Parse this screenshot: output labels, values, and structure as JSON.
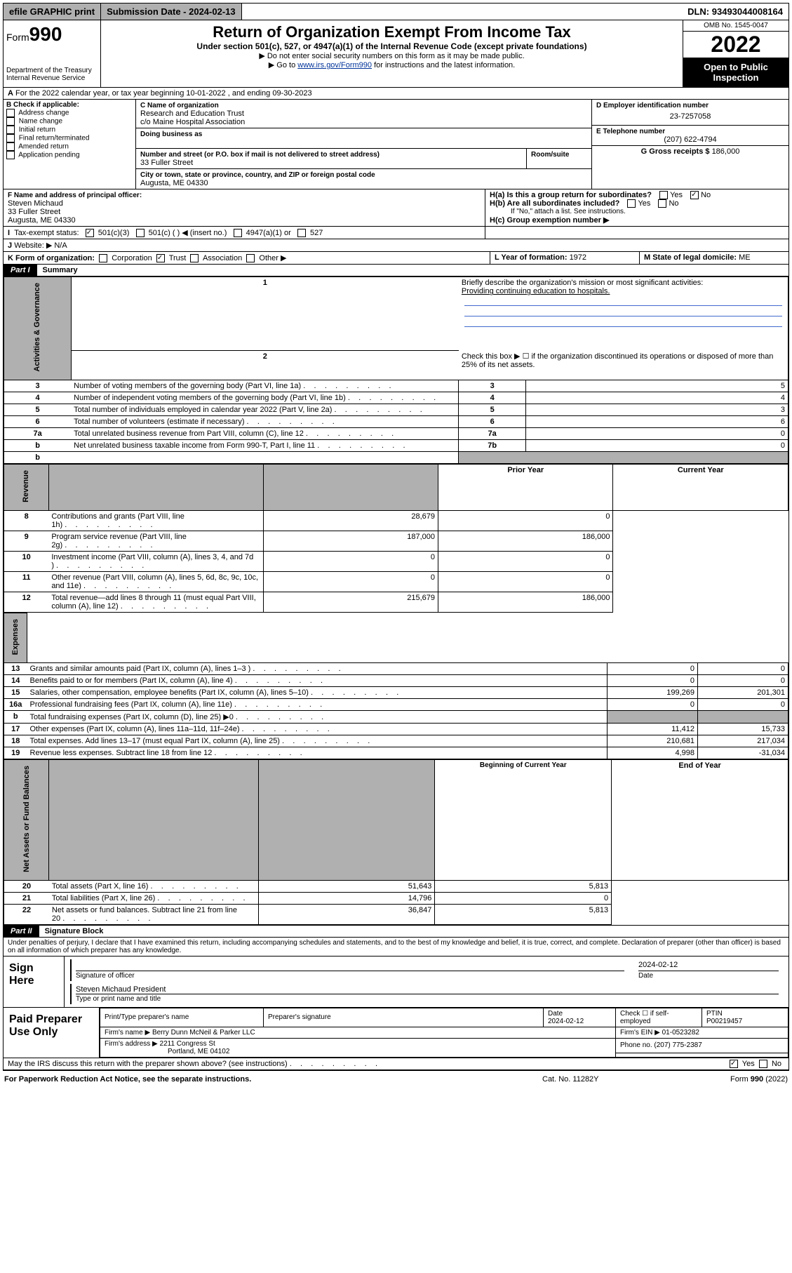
{
  "topbar": {
    "efile": "efile GRAPHIC print",
    "subdate_label": "Submission Date - ",
    "subdate": "2024-02-13",
    "dln_label": "DLN: ",
    "dln": "93493044008164"
  },
  "header": {
    "form_prefix": "Form",
    "form_no": "990",
    "dept": "Department of the Treasury",
    "irs": "Internal Revenue Service",
    "title": "Return of Organization Exempt From Income Tax",
    "subtitle": "Under section 501(c), 527, or 4947(a)(1) of the Internal Revenue Code (except private foundations)",
    "note1": "▶ Do not enter social security numbers on this form as it may be made public.",
    "note2_pre": "▶ Go to ",
    "note2_link": "www.irs.gov/Form990",
    "note2_post": " for instructions and the latest information.",
    "omb": "OMB No. 1545-0047",
    "year": "2022",
    "open": "Open to Public Inspection"
  },
  "lineA": {
    "text": "For the 2022 calendar year, or tax year beginning 10-01-2022   , and ending 09-30-2023",
    "prefix": "A"
  },
  "boxB": {
    "label": "B Check if applicable:",
    "opts": [
      "Address change",
      "Name change",
      "Initial return",
      "Final return/terminated",
      "Amended return",
      "Application pending"
    ]
  },
  "boxC": {
    "clabel": "C Name of organization",
    "name": "Research and Education Trust",
    "care": "c/o Maine Hospital Association",
    "dba_label": "Doing business as",
    "dba": "",
    "addr_label": "Number and street (or P.O. box if mail is not delivered to street address)",
    "room": "Room/suite",
    "addr": "33 Fuller Street",
    "city_label": "City or town, state or province, country, and ZIP or foreign postal code",
    "city": "Augusta, ME  04330"
  },
  "boxD": {
    "label": "D Employer identification number",
    "ein": "23-7257058"
  },
  "boxE": {
    "label": "E Telephone number",
    "phone": "(207) 622-4794"
  },
  "boxG": {
    "label": "G Gross receipts $ ",
    "val": "186,000"
  },
  "boxF": {
    "label": "F Name and address of principal officer:",
    "name": "Steven Michaud",
    "addr1": "33 Fuller Street",
    "addr2": "Augusta, ME  04330"
  },
  "boxH": {
    "a": "H(a)  Is this a group return for subordinates?",
    "b": "H(b)  Are all subordinates included?",
    "ifno": "If \"No,\" attach a list. See instructions.",
    "c": "H(c)  Group exemption number ▶",
    "yes": "Yes",
    "no": "No"
  },
  "boxI": {
    "label": "I",
    "text": "Tax-exempt status:",
    "o1": "501(c)(3)",
    "o2": "501(c) (  ) ◀ (insert no.)",
    "o3": "4947(a)(1) or",
    "o4": "527"
  },
  "boxJ": {
    "label": "J",
    "text": "Website: ▶",
    "val": "N/A"
  },
  "boxK": {
    "label": "K Form of organization:",
    "o1": "Corporation",
    "o2": "Trust",
    "o3": "Association",
    "o4": "Other ▶"
  },
  "boxL": {
    "label": "L Year of formation: ",
    "val": "1972"
  },
  "boxM": {
    "label": "M State of legal domicile: ",
    "val": "ME"
  },
  "part1": {
    "label": "Part I",
    "title": "Summary"
  },
  "summary": {
    "q1": "Briefly describe the organization's mission or most significant activities:",
    "mission": "Providing continuing education to hospitals.",
    "q2": "Check this box ▶ ☐  if the organization discontinued its operations or disposed of more than 25% of its net assets.",
    "rows_gov": [
      {
        "n": "3",
        "t": "Number of voting members of the governing body (Part VI, line 1a)",
        "v": "5"
      },
      {
        "n": "4",
        "t": "Number of independent voting members of the governing body (Part VI, line 1b)",
        "v": "4"
      },
      {
        "n": "5",
        "t": "Total number of individuals employed in calendar year 2022 (Part V, line 2a)",
        "v": "3"
      },
      {
        "n": "6",
        "t": "Total number of volunteers (estimate if necessary)",
        "v": "6"
      },
      {
        "n": "7a",
        "t": "Total unrelated business revenue from Part VIII, column (C), line 12",
        "v": "0"
      },
      {
        "n": "b",
        "t": "Net unrelated business taxable income from Form 990-T, Part I, line 11",
        "kn": "7b",
        "v": "0"
      }
    ],
    "hdr_prior": "Prior Year",
    "hdr_curr": "Current Year",
    "rows_rev": [
      {
        "n": "8",
        "t": "Contributions and grants (Part VIII, line 1h)",
        "p": "28,679",
        "c": "0"
      },
      {
        "n": "9",
        "t": "Program service revenue (Part VIII, line 2g)",
        "p": "187,000",
        "c": "186,000"
      },
      {
        "n": "10",
        "t": "Investment income (Part VIII, column (A), lines 3, 4, and 7d )",
        "p": "0",
        "c": "0"
      },
      {
        "n": "11",
        "t": "Other revenue (Part VIII, column (A), lines 5, 6d, 8c, 9c, 10c, and 11e)",
        "p": "0",
        "c": "0"
      },
      {
        "n": "12",
        "t": "Total revenue—add lines 8 through 11 (must equal Part VIII, column (A), line 12)",
        "p": "215,679",
        "c": "186,000"
      }
    ],
    "rows_exp": [
      {
        "n": "13",
        "t": "Grants and similar amounts paid (Part IX, column (A), lines 1–3 )",
        "p": "0",
        "c": "0"
      },
      {
        "n": "14",
        "t": "Benefits paid to or for members (Part IX, column (A), line 4)",
        "p": "0",
        "c": "0"
      },
      {
        "n": "15",
        "t": "Salaries, other compensation, employee benefits (Part IX, column (A), lines 5–10)",
        "p": "199,269",
        "c": "201,301"
      },
      {
        "n": "16a",
        "t": "Professional fundraising fees (Part IX, column (A), line 11e)",
        "p": "0",
        "c": "0"
      },
      {
        "n": "b",
        "t": "Total fundraising expenses (Part IX, column (D), line 25) ▶0",
        "p": "",
        "c": "",
        "gray": true
      },
      {
        "n": "17",
        "t": "Other expenses (Part IX, column (A), lines 11a–11d, 11f–24e)",
        "p": "11,412",
        "c": "15,733"
      },
      {
        "n": "18",
        "t": "Total expenses. Add lines 13–17 (must equal Part IX, column (A), line 25)",
        "p": "210,681",
        "c": "217,034"
      },
      {
        "n": "19",
        "t": "Revenue less expenses. Subtract line 18 from line 12",
        "p": "4,998",
        "c": "-31,034"
      }
    ],
    "hdr_boy": "Beginning of Current Year",
    "hdr_eoy": "End of Year",
    "rows_net": [
      {
        "n": "20",
        "t": "Total assets (Part X, line 16)",
        "p": "51,643",
        "c": "5,813"
      },
      {
        "n": "21",
        "t": "Total liabilities (Part X, line 26)",
        "p": "14,796",
        "c": "0"
      },
      {
        "n": "22",
        "t": "Net assets or fund balances. Subtract line 21 from line 20",
        "p": "36,847",
        "c": "5,813"
      }
    ],
    "side_gov": "Activities & Governance",
    "side_rev": "Revenue",
    "side_exp": "Expenses",
    "side_net": "Net Assets or Fund Balances"
  },
  "part2": {
    "label": "Part II",
    "title": "Signature Block"
  },
  "penalty": "Under penalties of perjury, I declare that I have examined this return, including accompanying schedules and statements, and to the best of my knowledge and belief, it is true, correct, and complete. Declaration of preparer (other than officer) is based on all information of which preparer has any knowledge.",
  "sign": {
    "here": "Sign Here",
    "sig_label": "Signature of officer",
    "date_label": "Date",
    "date": "2024-02-12",
    "name": "Steven Michaud  President",
    "name_label": "Type or print name and title"
  },
  "paid": {
    "label": "Paid Preparer Use Only",
    "h1": "Print/Type preparer's name",
    "h2": "Preparer's signature",
    "h3": "Date",
    "h3v": "2024-02-12",
    "h4": "Check ☐ if self-employed",
    "h5": "PTIN",
    "ptin": "P00219457",
    "firm_label": "Firm's name   ▶",
    "firm": "Berry Dunn McNeil & Parker LLC",
    "ein_label": "Firm's EIN ▶",
    "ein": "01-0523282",
    "addr_label": "Firm's address ▶",
    "addr1": "2211 Congress St",
    "addr2": "Portland, ME  04102",
    "phone_label": "Phone no. ",
    "phone": "(207) 775-2387"
  },
  "discuss": {
    "q": "May the IRS discuss this return with the preparer shown above? (see instructions)",
    "yes": "Yes",
    "no": "No"
  },
  "footer": {
    "l": "For Paperwork Reduction Act Notice, see the separate instructions.",
    "m": "Cat. No. 11282Y",
    "r": "Form 990 (2022)"
  }
}
